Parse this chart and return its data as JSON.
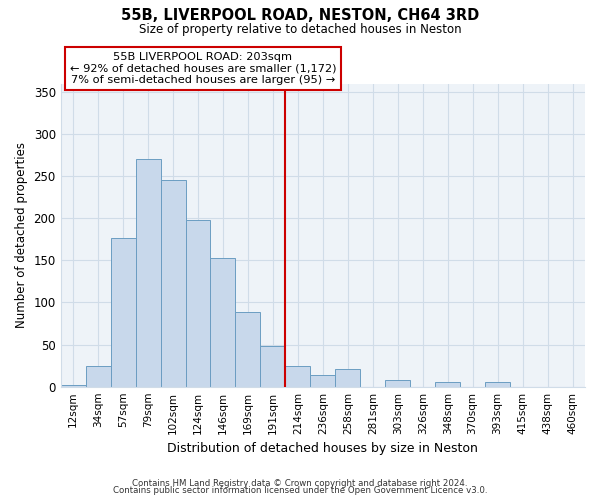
{
  "title": "55B, LIVERPOOL ROAD, NESTON, CH64 3RD",
  "subtitle": "Size of property relative to detached houses in Neston",
  "xlabel": "Distribution of detached houses by size in Neston",
  "ylabel": "Number of detached properties",
  "footnote1": "Contains HM Land Registry data © Crown copyright and database right 2024.",
  "footnote2": "Contains public sector information licensed under the Open Government Licence v3.0.",
  "annotation_title": "55B LIVERPOOL ROAD: 203sqm",
  "annotation_line1": "← 92% of detached houses are smaller (1,172)",
  "annotation_line2": "7% of semi-detached houses are larger (95) →",
  "bar_color": "#c8d8eb",
  "bar_edge_color": "#6b9dc2",
  "vline_color": "#cc0000",
  "vline_x": 8.5,
  "bin_labels": [
    "12sqm",
    "34sqm",
    "57sqm",
    "79sqm",
    "102sqm",
    "124sqm",
    "146sqm",
    "169sqm",
    "191sqm",
    "214sqm",
    "236sqm",
    "258sqm",
    "281sqm",
    "303sqm",
    "326sqm",
    "348sqm",
    "370sqm",
    "393sqm",
    "415sqm",
    "438sqm",
    "460sqm"
  ],
  "bar_heights": [
    2,
    24,
    176,
    270,
    245,
    198,
    153,
    89,
    48,
    25,
    14,
    21,
    0,
    8,
    0,
    5,
    0,
    5,
    0,
    0,
    0
  ],
  "ylim": [
    0,
    360
  ],
  "yticks": [
    0,
    50,
    100,
    150,
    200,
    250,
    300,
    350
  ],
  "background_color": "#ffffff",
  "grid_color": "#d0dce8",
  "ax_bg_color": "#eef3f8"
}
